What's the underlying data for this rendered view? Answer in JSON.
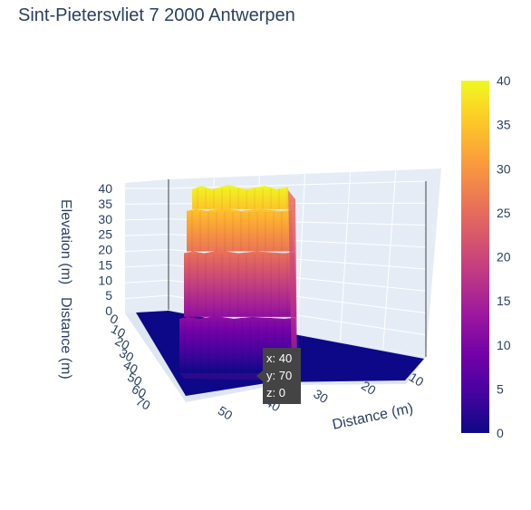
{
  "title": "Sint-Pietersvliet 7 2000 Antwerpen",
  "chart_data": {
    "type": "surface",
    "title": "Sint-Pietersvliet 7 2000 Antwerpen",
    "x_axis_label": "Distance (m)",
    "y_axis_label": "Distance (m)",
    "z_axis_label": "Elevation (m)",
    "x_ticks": [
      10,
      20,
      30,
      40,
      50
    ],
    "y_ticks": [
      0,
      10,
      20,
      30,
      40,
      50,
      60,
      70
    ],
    "z_ticks": [
      0,
      5,
      10,
      15,
      20,
      25,
      30,
      35,
      40
    ],
    "z_range": [
      0,
      40
    ],
    "colorscale": [
      "#0d0887",
      "#46039f",
      "#7201a8",
      "#9c179e",
      "#bd3786",
      "#d8576b",
      "#ed7953",
      "#fb9f3a",
      "#fdca26",
      "#f0f921"
    ],
    "colorbar_ticks": [
      0,
      5,
      10,
      15,
      20,
      25,
      30,
      35,
      40
    ],
    "building": {
      "x_extent": [
        10,
        45
      ],
      "y_extent": [
        20,
        70
      ],
      "tiers": [
        {
          "z_bottom": 0,
          "z_top": 12
        },
        {
          "z_bottom": 12,
          "z_top": 26
        },
        {
          "z_bottom": 26,
          "z_top": 35
        },
        {
          "z_bottom": 35,
          "z_top": 40
        }
      ]
    },
    "hover": {
      "x": 40,
      "y": 70,
      "z": 0
    }
  },
  "hover_lines": [
    "x: 40",
    "y: 70",
    "z: 0"
  ]
}
